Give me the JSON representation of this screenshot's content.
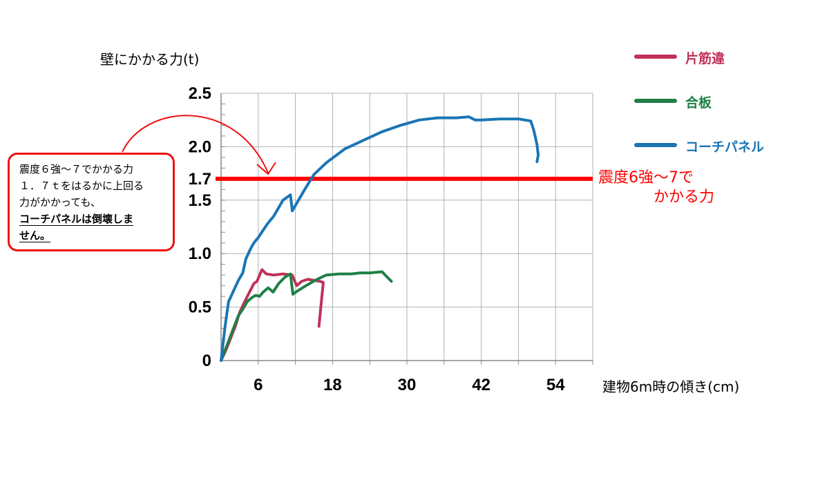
{
  "chart_data": {
    "type": "line",
    "ylabel": "壁にかかる力(t)",
    "xlabel": "建物6m時の傾き(cm)",
    "xlim": [
      0,
      60
    ],
    "ylim": [
      0,
      2.5
    ],
    "x_ticks": [
      6,
      18,
      30,
      42,
      54
    ],
    "y_ticks": [
      "0",
      "0.5",
      "1.0",
      "1.5",
      "1.7",
      "2.0",
      "2.5"
    ],
    "reference_line": {
      "y": 1.7,
      "label_line1": "震度6強～7で",
      "label_line2": "かかる力",
      "color": "#ff0000"
    },
    "series": [
      {
        "name": "片筋違",
        "color": "#c0325a",
        "x": [
          0,
          0.8,
          1.5,
          2.3,
          3,
          3.8,
          4.6,
          5.3,
          5.8,
          6.6,
          7.3,
          8.5,
          10,
          11.5,
          12.2,
          13,
          14,
          15,
          16,
          16.5,
          16.1,
          15.8
        ],
        "y": [
          0,
          0.1,
          0.2,
          0.32,
          0.45,
          0.55,
          0.64,
          0.72,
          0.74,
          0.85,
          0.81,
          0.8,
          0.81,
          0.8,
          0.7,
          0.74,
          0.76,
          0.75,
          0.74,
          0.73,
          0.5,
          0.32
        ]
      },
      {
        "name": "合板",
        "color": "#1f8045",
        "x": [
          0,
          1,
          2,
          2.8,
          3.5,
          4.2,
          5,
          5.6,
          6.2,
          6.8,
          7.6,
          8.4,
          9.3,
          10.3,
          11.2,
          11.6,
          12.3,
          14,
          15.5,
          17,
          19,
          21,
          22.5,
          24,
          26,
          26.5,
          27.5
        ],
        "y": [
          0,
          0.15,
          0.3,
          0.42,
          0.48,
          0.55,
          0.59,
          0.61,
          0.6,
          0.64,
          0.68,
          0.64,
          0.72,
          0.78,
          0.81,
          0.62,
          0.65,
          0.71,
          0.76,
          0.8,
          0.81,
          0.81,
          0.82,
          0.82,
          0.83,
          0.8,
          0.74
        ]
      },
      {
        "name": "コーチパネル",
        "color": "#1a75b5",
        "x": [
          0,
          0.6,
          1.2,
          2,
          2.8,
          3.5,
          4,
          4.8,
          5.3,
          6,
          6.8,
          7.5,
          8.5,
          10,
          11.2,
          11.5,
          12.3,
          13.5,
          15,
          17,
          20,
          23,
          26,
          29,
          32,
          35,
          38,
          40,
          41,
          42,
          45,
          48,
          50,
          50.5,
          51,
          51.2,
          51
        ],
        "y": [
          0,
          0.3,
          0.55,
          0.65,
          0.75,
          0.82,
          0.95,
          1.05,
          1.1,
          1.15,
          1.22,
          1.28,
          1.35,
          1.5,
          1.55,
          1.4,
          1.48,
          1.6,
          1.74,
          1.85,
          1.98,
          2.06,
          2.14,
          2.2,
          2.25,
          2.27,
          2.27,
          2.28,
          2.25,
          2.25,
          2.26,
          2.26,
          2.24,
          2.15,
          2.02,
          1.92,
          1.86
        ]
      }
    ],
    "legend_position": "right",
    "callout": {
      "line1": "震度６強～７でかかる力",
      "line2": "１．７ｔをはるかに上回る",
      "line3": "力がかかっても、",
      "bold1": "コーチパネルは倒壊しま",
      "bold2": "せん。"
    }
  }
}
